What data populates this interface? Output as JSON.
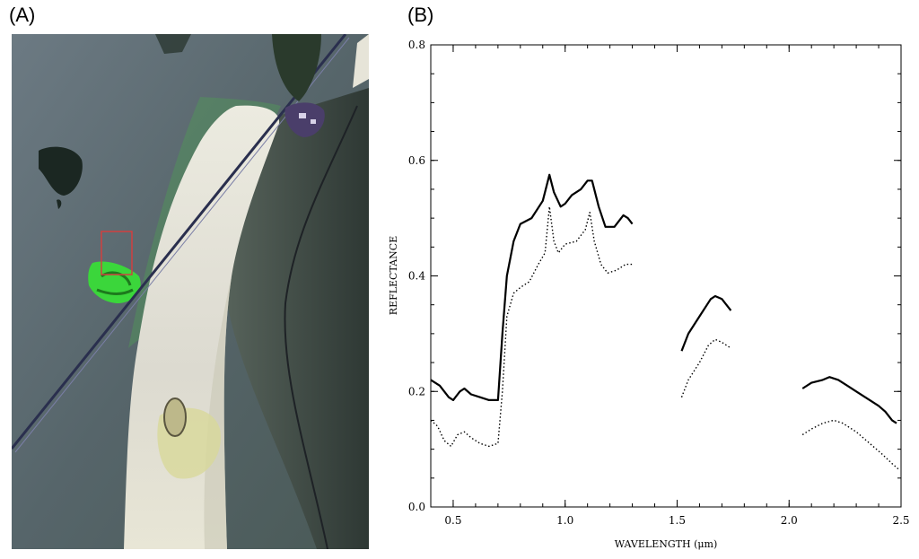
{
  "panels": {
    "a_label": "(A)",
    "b_label": "(B)"
  },
  "satellite": {
    "colors": {
      "plain": "#5d6a6e",
      "playa": "#e2e0d2",
      "vegetation": "#3bd63b",
      "lake": "#1b2722",
      "slope": "#3e4a44"
    }
  },
  "chart_data": {
    "type": "line",
    "title": "",
    "xlabel": "WAVELENGTH (μm)",
    "ylabel": "REFLECTANCE",
    "xlim": [
      0.4,
      2.5
    ],
    "ylim": [
      0.0,
      0.8
    ],
    "xticks": [
      0.5,
      1.0,
      1.5,
      2.0,
      2.5
    ],
    "xtick_labels": [
      "0.5",
      "1.0",
      "1.5",
      "2.0",
      "2.5"
    ],
    "yticks": [
      0.0,
      0.2,
      0.4,
      0.6,
      0.8
    ],
    "ytick_labels": [
      "0.0",
      "0.2",
      "0.4",
      "0.6",
      "0.8"
    ],
    "grid": false,
    "series": [
      {
        "style": "solid",
        "segments": [
          [
            [
              0.4,
              0.22
            ],
            [
              0.44,
              0.21
            ],
            [
              0.48,
              0.19
            ],
            [
              0.5,
              0.185
            ],
            [
              0.53,
              0.2
            ],
            [
              0.55,
              0.205
            ],
            [
              0.58,
              0.195
            ],
            [
              0.62,
              0.19
            ],
            [
              0.66,
              0.185
            ],
            [
              0.7,
              0.185
            ],
            [
              0.72,
              0.3
            ],
            [
              0.74,
              0.4
            ],
            [
              0.77,
              0.46
            ],
            [
              0.8,
              0.49
            ],
            [
              0.85,
              0.5
            ],
            [
              0.9,
              0.53
            ],
            [
              0.93,
              0.575
            ],
            [
              0.95,
              0.545
            ],
            [
              0.98,
              0.52
            ],
            [
              1.0,
              0.525
            ],
            [
              1.03,
              0.54
            ],
            [
              1.07,
              0.55
            ],
            [
              1.1,
              0.565
            ],
            [
              1.12,
              0.565
            ],
            [
              1.15,
              0.52
            ],
            [
              1.18,
              0.485
            ],
            [
              1.22,
              0.485
            ],
            [
              1.26,
              0.505
            ],
            [
              1.28,
              0.5
            ],
            [
              1.3,
              0.49
            ]
          ],
          [
            [
              1.52,
              0.27
            ],
            [
              1.55,
              0.3
            ],
            [
              1.6,
              0.33
            ],
            [
              1.65,
              0.36
            ],
            [
              1.67,
              0.365
            ],
            [
              1.7,
              0.36
            ],
            [
              1.74,
              0.34
            ]
          ],
          [
            [
              2.06,
              0.205
            ],
            [
              2.1,
              0.215
            ],
            [
              2.15,
              0.22
            ],
            [
              2.18,
              0.225
            ],
            [
              2.22,
              0.22
            ],
            [
              2.26,
              0.21
            ],
            [
              2.3,
              0.2
            ],
            [
              2.36,
              0.185
            ],
            [
              2.4,
              0.175
            ],
            [
              2.43,
              0.165
            ],
            [
              2.46,
              0.15
            ],
            [
              2.48,
              0.145
            ]
          ]
        ]
      },
      {
        "style": "dotted",
        "segments": [
          [
            [
              0.4,
              0.15
            ],
            [
              0.43,
              0.14
            ],
            [
              0.46,
              0.115
            ],
            [
              0.49,
              0.105
            ],
            [
              0.52,
              0.125
            ],
            [
              0.55,
              0.13
            ],
            [
              0.58,
              0.12
            ],
            [
              0.62,
              0.11
            ],
            [
              0.66,
              0.105
            ],
            [
              0.7,
              0.11
            ],
            [
              0.72,
              0.2
            ],
            [
              0.74,
              0.33
            ],
            [
              0.77,
              0.37
            ],
            [
              0.8,
              0.38
            ],
            [
              0.84,
              0.39
            ],
            [
              0.88,
              0.42
            ],
            [
              0.91,
              0.44
            ],
            [
              0.93,
              0.52
            ],
            [
              0.95,
              0.46
            ],
            [
              0.97,
              0.44
            ],
            [
              1.0,
              0.455
            ],
            [
              1.05,
              0.46
            ],
            [
              1.09,
              0.48
            ],
            [
              1.11,
              0.51
            ],
            [
              1.13,
              0.46
            ],
            [
              1.16,
              0.42
            ],
            [
              1.19,
              0.405
            ],
            [
              1.23,
              0.41
            ],
            [
              1.27,
              0.42
            ],
            [
              1.3,
              0.42
            ]
          ],
          [
            [
              1.52,
              0.19
            ],
            [
              1.55,
              0.22
            ],
            [
              1.6,
              0.25
            ],
            [
              1.64,
              0.28
            ],
            [
              1.67,
              0.29
            ],
            [
              1.7,
              0.285
            ],
            [
              1.74,
              0.275
            ]
          ],
          [
            [
              2.06,
              0.125
            ],
            [
              2.1,
              0.135
            ],
            [
              2.15,
              0.145
            ],
            [
              2.2,
              0.15
            ],
            [
              2.24,
              0.145
            ],
            [
              2.3,
              0.13
            ],
            [
              2.36,
              0.11
            ],
            [
              2.42,
              0.09
            ],
            [
              2.46,
              0.075
            ],
            [
              2.49,
              0.065
            ]
          ]
        ]
      }
    ],
    "noise_regions": [
      [
        1.32,
        1.45
      ],
      [
        1.78,
        1.98
      ]
    ]
  }
}
